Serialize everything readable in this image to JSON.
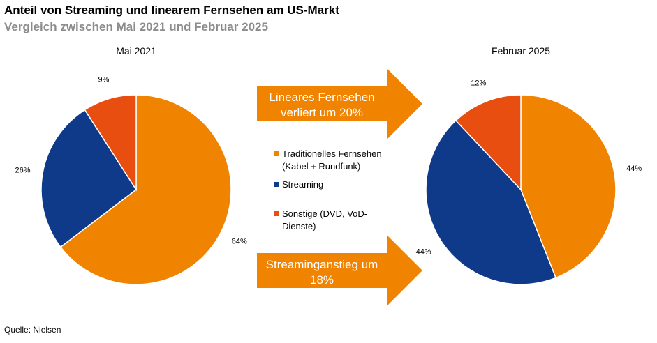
{
  "title": "Anteil von Streaming und linearem Fernsehen am US-Markt",
  "subtitle": "Vergleich zwischen Mai 2021 und Februar 2025",
  "source": "Quelle: Nielsen",
  "colors": {
    "traditional": "#f08300",
    "streaming": "#0f3a8a",
    "other": "#e84e10",
    "arrow": "#f08300"
  },
  "arrows": [
    {
      "lines": [
        "Lineares Fernsehen",
        "verliert um 20%"
      ]
    },
    {
      "lines": [
        "Streaminganstieg um",
        "18%"
      ]
    }
  ],
  "legend": [
    {
      "lines": [
        "Traditionelles Fernsehen",
        "(Kabel + Rundfunk)"
      ],
      "color_key": "traditional"
    },
    {
      "lines": [
        "Streaming"
      ],
      "color_key": "streaming"
    },
    {
      "lines": [
        "Sonstige (DVD, VoD-",
        "Dienste)"
      ],
      "color_key": "other"
    }
  ],
  "chart_data": [
    {
      "type": "pie",
      "title": "Mai 2021",
      "categories": [
        "Traditionelles Fernsehen (Kabel + Rundfunk)",
        "Streaming",
        "Sonstige (DVD, VoD-Dienste)"
      ],
      "values": [
        64,
        26,
        9
      ],
      "labels": [
        "64%",
        "26%",
        "9%"
      ]
    },
    {
      "type": "pie",
      "title": "Februar 2025",
      "categories": [
        "Traditionelles Fernsehen (Kabel + Rundfunk)",
        "Streaming",
        "Sonstige (DVD, VoD-Dienste)"
      ],
      "values": [
        44,
        44,
        12
      ],
      "labels": [
        "44%",
        "44%",
        "12%"
      ]
    }
  ]
}
